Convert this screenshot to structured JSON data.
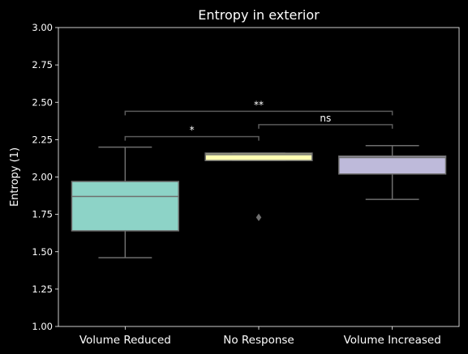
{
  "chart_data": {
    "type": "box",
    "title": "Entropy in exterior",
    "xlabel": "",
    "ylabel": "Entropy (1)",
    "ylim": [
      1.0,
      3.0
    ],
    "yticks": [
      "1.00",
      "1.25",
      "1.50",
      "1.75",
      "2.00",
      "2.25",
      "2.50",
      "2.75",
      "3.00"
    ],
    "categories": [
      "Volume Reduced",
      "No Response",
      "Volume Increased"
    ],
    "boxes": [
      {
        "category": "Volume Reduced",
        "whisker_low": 1.46,
        "q1": 1.64,
        "median": 1.87,
        "q3": 1.97,
        "whisker_high": 2.2,
        "outliers": [],
        "color": "#8dd3c7"
      },
      {
        "category": "No Response",
        "whisker_low": 2.11,
        "q1": 2.11,
        "median": 2.15,
        "q3": 2.16,
        "whisker_high": 2.16,
        "outliers": [
          1.73
        ],
        "color": "#ffffb3"
      },
      {
        "category": "Volume Increased",
        "whisker_low": 1.85,
        "q1": 2.02,
        "median": 2.13,
        "q3": 2.14,
        "whisker_high": 2.21,
        "outliers": [],
        "color": "#bebada"
      }
    ],
    "annotations": [
      {
        "from": 0,
        "to": 1,
        "y": 2.27,
        "text": "*"
      },
      {
        "from": 1,
        "to": 2,
        "y": 2.35,
        "text": "ns"
      },
      {
        "from": 0,
        "to": 2,
        "y": 2.44,
        "text": "**"
      }
    ],
    "grid": false,
    "legend": "none"
  }
}
